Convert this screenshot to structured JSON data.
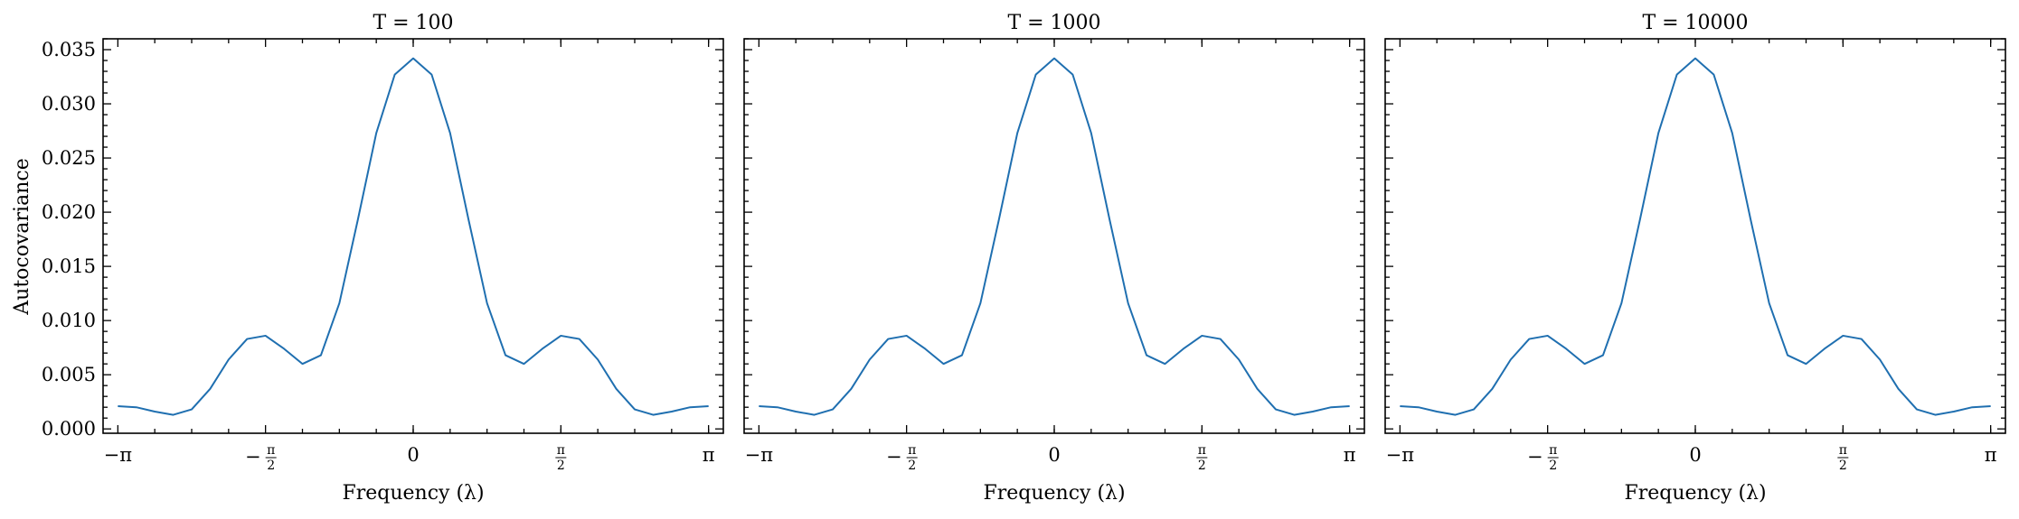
{
  "figure": {
    "ylabel": "Autocovariance"
  },
  "chart_data": [
    {
      "type": "line",
      "title": "T = 100",
      "xlabel": "Frequency (λ)",
      "ylabel": "Autocovariance",
      "xlim": [
        -3.2987,
        3.2987
      ],
      "ylim": [
        -0.0004,
        0.036
      ],
      "x_ticks": [
        -3.14159,
        -1.5708,
        0,
        1.5708,
        3.14159
      ],
      "x_tick_labels": [
        "−π",
        "−π/2",
        "0",
        "π/2",
        "π"
      ],
      "y_ticks": [
        0,
        0.005,
        0.01,
        0.015,
        0.02,
        0.025,
        0.03,
        0.035
      ],
      "y_tick_labels": [
        "0.000",
        "0.005",
        "0.010",
        "0.015",
        "0.020",
        "0.025",
        "0.030",
        "0.035"
      ],
      "grid": false,
      "series": [
        {
          "color": "#1f6fb0",
          "x": [
            -3.1416,
            -2.9452,
            -2.7489,
            -2.5525,
            -2.3562,
            -2.1598,
            -1.9635,
            -1.7671,
            -1.5708,
            -1.3744,
            -1.1781,
            -0.9817,
            -0.7854,
            -0.589,
            -0.3927,
            -0.1963,
            0,
            0.1963,
            0.3927,
            0.589,
            0.7854,
            0.9817,
            1.1781,
            1.3744,
            1.5708,
            1.7671,
            1.9635,
            2.1598,
            2.3562,
            2.5525,
            2.7489,
            2.9452,
            3.1416
          ],
          "y": [
            0.0021,
            0.002,
            0.0016,
            0.0013,
            0.0018,
            0.0037,
            0.0064,
            0.0083,
            0.0086,
            0.0074,
            0.006,
            0.0068,
            0.0116,
            0.0193,
            0.0273,
            0.0327,
            0.0342,
            0.0327,
            0.0273,
            0.0193,
            0.0116,
            0.0068,
            0.006,
            0.0074,
            0.0086,
            0.0083,
            0.0064,
            0.0037,
            0.0018,
            0.0013,
            0.0016,
            0.002,
            0.0021
          ]
        }
      ]
    },
    {
      "type": "line",
      "title": "T = 1000",
      "xlabel": "Frequency (λ)",
      "xlim": [
        -3.2987,
        3.2987
      ],
      "ylim": [
        -0.0004,
        0.036
      ],
      "x_ticks": [
        -3.14159,
        -1.5708,
        0,
        1.5708,
        3.14159
      ],
      "x_tick_labels": [
        "−π",
        "−π/2",
        "0",
        "π/2",
        "π"
      ],
      "y_ticks": [
        0,
        0.005,
        0.01,
        0.015,
        0.02,
        0.025,
        0.03,
        0.035
      ],
      "y_tick_labels": [],
      "grid": false,
      "series": [
        {
          "color": "#1f6fb0",
          "x": [
            -3.1416,
            -2.9452,
            -2.7489,
            -2.5525,
            -2.3562,
            -2.1598,
            -1.9635,
            -1.7671,
            -1.5708,
            -1.3744,
            -1.1781,
            -0.9817,
            -0.7854,
            -0.589,
            -0.3927,
            -0.1963,
            0,
            0.1963,
            0.3927,
            0.589,
            0.7854,
            0.9817,
            1.1781,
            1.3744,
            1.5708,
            1.7671,
            1.9635,
            2.1598,
            2.3562,
            2.5525,
            2.7489,
            2.9452,
            3.1416
          ],
          "y": [
            0.0021,
            0.002,
            0.0016,
            0.0013,
            0.0018,
            0.0037,
            0.0064,
            0.0083,
            0.0086,
            0.0074,
            0.006,
            0.0068,
            0.0116,
            0.0193,
            0.0273,
            0.0327,
            0.0342,
            0.0327,
            0.0273,
            0.0193,
            0.0116,
            0.0068,
            0.006,
            0.0074,
            0.0086,
            0.0083,
            0.0064,
            0.0037,
            0.0018,
            0.0013,
            0.0016,
            0.002,
            0.0021
          ]
        }
      ]
    },
    {
      "type": "line",
      "title": "T = 10000",
      "xlabel": "Frequency (λ)",
      "xlim": [
        -3.2987,
        3.2987
      ],
      "ylim": [
        -0.0004,
        0.036
      ],
      "x_ticks": [
        -3.14159,
        -1.5708,
        0,
        1.5708,
        3.14159
      ],
      "x_tick_labels": [
        "−π",
        "−π/2",
        "0",
        "π/2",
        "π"
      ],
      "y_ticks": [
        0,
        0.005,
        0.01,
        0.015,
        0.02,
        0.025,
        0.03,
        0.035
      ],
      "y_tick_labels": [],
      "grid": false,
      "series": [
        {
          "color": "#1f6fb0",
          "x": [
            -3.1416,
            -2.9452,
            -2.7489,
            -2.5525,
            -2.3562,
            -2.1598,
            -1.9635,
            -1.7671,
            -1.5708,
            -1.3744,
            -1.1781,
            -0.9817,
            -0.7854,
            -0.589,
            -0.3927,
            -0.1963,
            0,
            0.1963,
            0.3927,
            0.589,
            0.7854,
            0.9817,
            1.1781,
            1.3744,
            1.5708,
            1.7671,
            1.9635,
            2.1598,
            2.3562,
            2.5525,
            2.7489,
            2.9452,
            3.1416
          ],
          "y": [
            0.0021,
            0.002,
            0.0016,
            0.0013,
            0.0018,
            0.0037,
            0.0064,
            0.0083,
            0.0086,
            0.0074,
            0.006,
            0.0068,
            0.0116,
            0.0193,
            0.0273,
            0.0327,
            0.0342,
            0.0327,
            0.0273,
            0.0193,
            0.0116,
            0.0068,
            0.006,
            0.0074,
            0.0086,
            0.0083,
            0.0064,
            0.0037,
            0.0018,
            0.0013,
            0.0016,
            0.002,
            0.0021
          ]
        }
      ]
    }
  ]
}
